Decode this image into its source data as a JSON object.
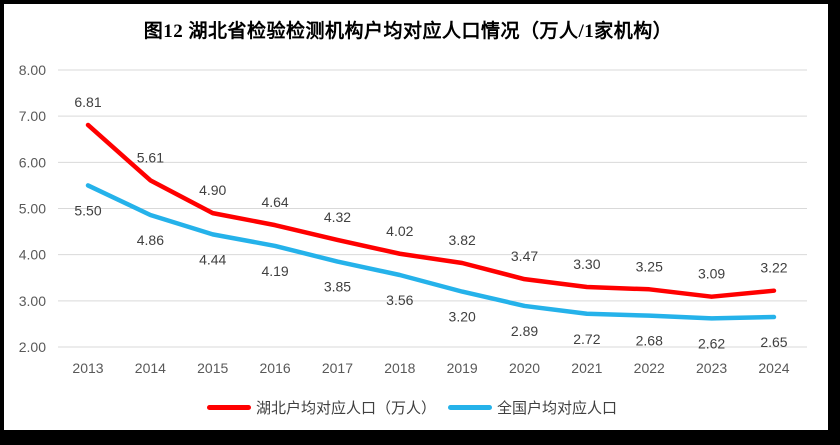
{
  "title": "图12 湖北省检验检测机构户均对应人口情况（万人/1家机构）",
  "chart_data": {
    "type": "line",
    "title": "图12 湖北省检验检测机构户均对应人口情况（万人/1家机构）",
    "categories": [
      "2013",
      "2014",
      "2015",
      "2016",
      "2017",
      "2018",
      "2019",
      "2020",
      "2021",
      "2022",
      "2023",
      "2024"
    ],
    "series": [
      {
        "name": "湖北户均对应人口（万人）",
        "color": "#FF0000",
        "label_position": "above",
        "values": [
          6.81,
          5.61,
          4.9,
          4.64,
          4.32,
          4.02,
          3.82,
          3.47,
          3.3,
          3.25,
          3.09,
          3.22
        ]
      },
      {
        "name": "全国户均对应人口",
        "color": "#25B2EA",
        "label_position": "below",
        "values": [
          5.5,
          4.86,
          4.44,
          4.19,
          3.85,
          3.56,
          3.2,
          2.89,
          2.72,
          2.68,
          2.62,
          2.65
        ]
      }
    ],
    "xlabel": "",
    "ylabel": "",
    "ylim": [
      2.0,
      8.0
    ],
    "yticks": [
      "8.00",
      "7.00",
      "6.00",
      "5.00",
      "4.00",
      "3.00",
      "2.00"
    ],
    "value_format": "two_decimals",
    "grid": "horizontal",
    "legend_position": "bottom"
  },
  "colors": {
    "grid": "#D9D9D9",
    "axis_text": "#595959",
    "data_label_text": "#404040",
    "frame": "#000000",
    "background": "#FFFFFF"
  }
}
